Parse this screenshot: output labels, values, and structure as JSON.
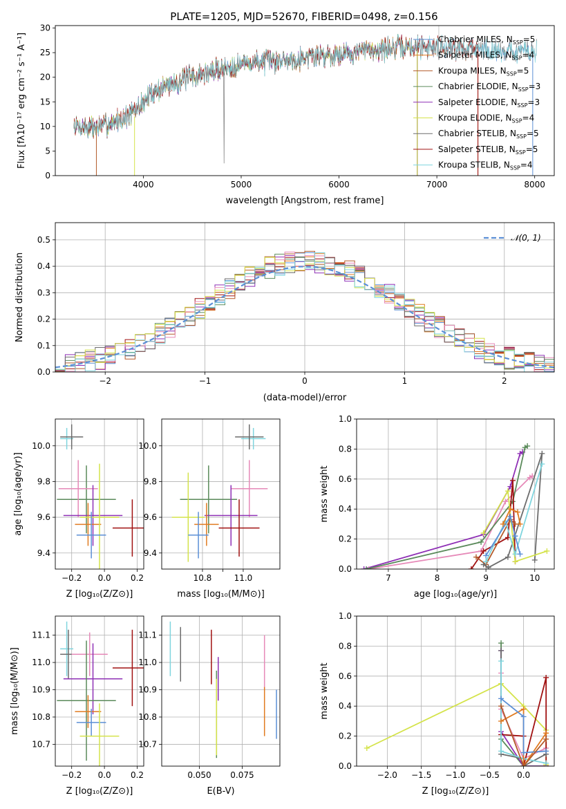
{
  "figure": {
    "title": "PLATE=1205, MJD=52670, FIBERID=0498, z=0.156"
  },
  "colors": {
    "C0": "#5b8fd6",
    "C1": "#e07a1f",
    "C2": "#5a8a5a",
    "C3": "#a01010",
    "C4": "#8e2fb5",
    "C5": "#b35a2a",
    "C6": "#e689b8",
    "C7": "#6c6c6c",
    "C8": "#d4e34a",
    "C9": "#7fd5de"
  },
  "chart_data": [
    {
      "id": "spectrum",
      "type": "line",
      "title": "PLATE=1205, MJD=52670, FIBERID=0498, z=0.156",
      "xlabel": "wavelength [Angstrom, rest frame]",
      "ylabel": "Flux [fλ10⁻¹⁷ erg cm⁻² s⁻¹ A⁻¹]",
      "xlim": [
        3100,
        8200
      ],
      "ylim": [
        0,
        30.5
      ],
      "xticks": [
        4000,
        5000,
        6000,
        7000,
        8000
      ],
      "yticks": [
        0,
        5,
        10,
        15,
        20,
        25,
        30
      ],
      "grid": false,
      "legend": "top-right",
      "x_range": [
        3290,
        8020
      ],
      "continuum": [
        [
          3290,
          10.0
        ],
        [
          3500,
          9.8
        ],
        [
          3700,
          10.8
        ],
        [
          3900,
          12.8
        ],
        [
          4100,
          17.0
        ],
        [
          4300,
          18.8
        ],
        [
          4500,
          20.0
        ],
        [
          4700,
          21.2
        ],
        [
          4900,
          22.3
        ],
        [
          5100,
          23.0
        ],
        [
          5400,
          23.4
        ],
        [
          5700,
          24.2
        ],
        [
          6000,
          24.8
        ],
        [
          6300,
          25.5
        ],
        [
          6600,
          26.0
        ],
        [
          6900,
          26.3
        ],
        [
          7200,
          26.0
        ],
        [
          7500,
          25.6
        ],
        [
          7800,
          25.3
        ],
        [
          8020,
          25.0
        ]
      ],
      "series": [
        {
          "name": "Chabrier MILES, N_SSP=5",
          "color_key": "C0",
          "end": 7980
        },
        {
          "name": "Salpeter MILES, N_SSP=4",
          "color_key": "C1",
          "end": 6800
        },
        {
          "name": "Kroupa MILES, N_SSP=5",
          "color_key": "C5",
          "end": 7420
        },
        {
          "name": "Chabrier ELODIE, N_SSP=3",
          "color_key": "C2",
          "end": 6800
        },
        {
          "name": "Salpeter ELODIE, N_SSP=3",
          "color_key": "C4",
          "end": 6800
        },
        {
          "name": "Kroupa ELODIE, N_SSP=4",
          "color_key": "C8",
          "end": 6800
        },
        {
          "name": "Chabrier STELIB, N_SSP=5",
          "color_key": "C7",
          "end": 8020
        },
        {
          "name": "Salpeter STELIB, N_SSP=5",
          "color_key": "C3",
          "end": 7420
        },
        {
          "name": "Kroupa STELIB, N_SSP=4",
          "color_key": "C9",
          "end": 8020
        }
      ]
    },
    {
      "id": "residuals",
      "type": "histogram",
      "xlabel": "(data-model)/error",
      "ylabel": "Normed distribution",
      "xlim": [
        -2.5,
        2.5
      ],
      "ylim": [
        0,
        0.565
      ],
      "xticks": [
        -2,
        -1,
        0,
        1,
        2
      ],
      "yticks": [
        0.0,
        0.1,
        0.2,
        0.3,
        0.4,
        0.5
      ],
      "grid": true,
      "legend": "top-right",
      "bin_width": 0.1,
      "reference": {
        "name": "𝒩(0, 1)",
        "color_key": "C0",
        "mean": 0,
        "sd": 1
      }
    },
    {
      "id": "z-age",
      "type": "scatter",
      "xlabel": "Z [log₁₀(Z/Z⊙)]",
      "ylabel": "age  [log₁₀(age/yr)]",
      "xlim": [
        -0.3,
        0.24
      ],
      "ylim": [
        9.31,
        10.15
      ],
      "xticks": [
        -0.2,
        0.0,
        0.2
      ],
      "yticks": [
        9.4,
        9.6,
        9.8,
        10.0
      ],
      "grid": true,
      "points": [
        {
          "color_key": "C9",
          "x": -0.23,
          "xerr": 0.04,
          "y": 10.04,
          "yerr": 0.06
        },
        {
          "color_key": "C7",
          "x": -0.2,
          "xerr": 0.07,
          "y": 10.05,
          "yerr": 0.07
        },
        {
          "color_key": "C2",
          "x": -0.11,
          "xerr": 0.18,
          "y": 9.7,
          "yerr": 0.19
        },
        {
          "color_key": "C6",
          "x": -0.16,
          "xerr": 0.12,
          "y": 9.76,
          "yerr": 0.16
        },
        {
          "color_key": "C4",
          "x": -0.07,
          "xerr": 0.18,
          "y": 9.61,
          "yerr": 0.17
        },
        {
          "color_key": "C1",
          "x": -0.1,
          "xerr": 0.08,
          "y": 9.56,
          "yerr": 0.12
        },
        {
          "color_key": "C8",
          "x": -0.03,
          "xerr": 0.12,
          "y": 9.6,
          "yerr": 0.3
        },
        {
          "color_key": "C0",
          "x": -0.08,
          "xerr": 0.09,
          "y": 9.5,
          "yerr": 0.13
        },
        {
          "color_key": "C3",
          "x": 0.17,
          "xerr": 0.12,
          "y": 9.54,
          "yerr": 0.16
        }
      ]
    },
    {
      "id": "mass-age",
      "type": "scatter",
      "xlabel": "mass [log₁₀(M/M⊙)]",
      "ylabel": "",
      "xlim": [
        10.6,
        11.18
      ],
      "ylim": [
        9.31,
        10.15
      ],
      "xticks": [
        10.8,
        10.9,
        11.0
      ],
      "xticklabels": [
        "10.8",
        "",
        "11.0"
      ],
      "yticks": [
        9.4,
        9.6,
        9.8,
        10.0
      ],
      "grid": true,
      "points": [
        {
          "color_key": "C9",
          "x": 11.05,
          "xerr": 0.06,
          "y": 10.04,
          "yerr": 0.06
        },
        {
          "color_key": "C7",
          "x": 11.03,
          "xerr": 0.07,
          "y": 10.05,
          "yerr": 0.07
        },
        {
          "color_key": "C2",
          "x": 10.83,
          "xerr": 0.14,
          "y": 9.7,
          "yerr": 0.19
        },
        {
          "color_key": "C6",
          "x": 11.03,
          "xerr": 0.09,
          "y": 9.76,
          "yerr": 0.16
        },
        {
          "color_key": "C4",
          "x": 10.94,
          "xerr": 0.13,
          "y": 9.61,
          "yerr": 0.17
        },
        {
          "color_key": "C1",
          "x": 10.82,
          "xerr": 0.06,
          "y": 9.56,
          "yerr": 0.12
        },
        {
          "color_key": "C8",
          "x": 10.73,
          "xerr": 0.08,
          "y": 9.6,
          "yerr": 0.25
        },
        {
          "color_key": "C0",
          "x": 10.78,
          "xerr": 0.05,
          "y": 9.5,
          "yerr": 0.13
        },
        {
          "color_key": "C3",
          "x": 10.98,
          "xerr": 0.1,
          "y": 9.54,
          "yerr": 0.16
        }
      ]
    },
    {
      "id": "age-weight",
      "type": "line",
      "xlabel": "age  [log₁₀(age/yr)]",
      "ylabel": "mass weight",
      "xlim": [
        6.35,
        10.4
      ],
      "ylim": [
        0,
        1.0
      ],
      "xticks": [
        7,
        8,
        9,
        10
      ],
      "yticks": [
        0.0,
        0.2,
        0.4,
        0.6,
        0.8,
        1.0
      ],
      "grid": true,
      "series": [
        {
          "color_key": "C4",
          "points": [
            [
              6.5,
              0.0
            ],
            [
              8.95,
              0.23
            ],
            [
              9.5,
              0.55
            ],
            [
              9.7,
              0.77
            ],
            [
              9.75,
              0.78
            ]
          ]
        },
        {
          "color_key": "C6",
          "points": [
            [
              6.6,
              0.0
            ],
            [
              8.9,
              0.12
            ],
            [
              9.4,
              0.45
            ],
            [
              9.9,
              0.61
            ],
            [
              9.95,
              0.62
            ]
          ]
        },
        {
          "color_key": "C2",
          "points": [
            [
              6.55,
              0.0
            ],
            [
              8.9,
              0.18
            ],
            [
              9.55,
              0.45
            ],
            [
              9.8,
              0.81
            ],
            [
              9.85,
              0.82
            ]
          ]
        },
        {
          "color_key": "C3",
          "points": [
            [
              8.7,
              0.0
            ],
            [
              8.95,
              0.12
            ],
            [
              9.45,
              0.21
            ],
            [
              9.55,
              0.59
            ],
            [
              9.6,
              0.05
            ]
          ]
        },
        {
          "color_key": "C5",
          "points": [
            [
              8.8,
              0.08
            ],
            [
              9.0,
              0.03
            ],
            [
              9.5,
              0.33
            ],
            [
              9.6,
              0.3
            ]
          ]
        },
        {
          "color_key": "C7",
          "points": [
            [
              8.95,
              0.03
            ],
            [
              9.05,
              0.01
            ],
            [
              9.45,
              0.08
            ],
            [
              10.15,
              0.77
            ],
            [
              10.0,
              0.06
            ]
          ]
        },
        {
          "color_key": "C8",
          "points": [
            [
              8.95,
              0.24
            ],
            [
              9.45,
              0.52
            ],
            [
              9.6,
              0.05
            ],
            [
              10.25,
              0.12
            ]
          ]
        },
        {
          "color_key": "C9",
          "points": [
            [
              9.0,
              0.05
            ],
            [
              9.4,
              0.32
            ],
            [
              9.6,
              0.1
            ],
            [
              10.15,
              0.7
            ]
          ]
        },
        {
          "color_key": "C0",
          "points": [
            [
              9.0,
              0.09
            ],
            [
              9.5,
              0.35
            ],
            [
              9.6,
              0.22
            ],
            [
              9.7,
              0.1
            ]
          ]
        },
        {
          "color_key": "C1",
          "points": [
            [
              9.35,
              0.3
            ],
            [
              9.5,
              0.4
            ],
            [
              9.65,
              0.38
            ],
            [
              9.7,
              0.3
            ]
          ]
        }
      ]
    },
    {
      "id": "z-mass",
      "type": "scatter",
      "xlabel": "Z [log₁₀(Z/Z⊙)]",
      "ylabel": "mass [log₁₀(M/M⊙)]",
      "xlim": [
        -0.3,
        0.24
      ],
      "ylim": [
        10.62,
        11.17
      ],
      "xticks": [
        -0.2,
        0.0,
        0.2
      ],
      "yticks": [
        10.7,
        10.8,
        10.9,
        11.0,
        11.1
      ],
      "grid": true,
      "points": [
        {
          "color_key": "C9",
          "x": -0.23,
          "xerr": 0.04,
          "y": 11.05,
          "yerr": 0.1
        },
        {
          "color_key": "C7",
          "x": -0.22,
          "xerr": 0.05,
          "y": 11.03,
          "yerr": 0.09
        },
        {
          "color_key": "C6",
          "x": -0.09,
          "xerr": 0.11,
          "y": 11.03,
          "yerr": 0.08
        },
        {
          "color_key": "C3",
          "x": 0.17,
          "xerr": 0.12,
          "y": 10.98,
          "yerr": 0.14
        },
        {
          "color_key": "C4",
          "x": -0.07,
          "xerr": 0.18,
          "y": 10.94,
          "yerr": 0.13
        },
        {
          "color_key": "C2",
          "x": -0.11,
          "xerr": 0.18,
          "y": 10.86,
          "yerr": 0.22
        },
        {
          "color_key": "C1",
          "x": -0.1,
          "xerr": 0.08,
          "y": 10.82,
          "yerr": 0.06
        },
        {
          "color_key": "C0",
          "x": -0.08,
          "xerr": 0.09,
          "y": 10.78,
          "yerr": 0.05
        },
        {
          "color_key": "C8",
          "x": -0.03,
          "xerr": 0.12,
          "y": 10.73,
          "yerr": 0.12
        }
      ]
    },
    {
      "id": "ebv-mass",
      "type": "scatter",
      "xlabel": "E(B-V)",
      "ylabel": "",
      "xlim": [
        0.028,
        0.097
      ],
      "ylim": [
        10.62,
        11.17
      ],
      "xticks": [
        0.05,
        0.075
      ],
      "xticklabels": [
        "0.050",
        "0.075"
      ],
      "yticks": [
        10.7,
        10.8,
        10.9,
        11.0,
        11.1
      ],
      "grid": true,
      "points": [
        {
          "color_key": "C9",
          "x": 0.033,
          "y": 11.05,
          "yerr": 0.1
        },
        {
          "color_key": "C7",
          "x": 0.039,
          "y": 11.03,
          "yerr": 0.1
        },
        {
          "color_key": "C3",
          "x": 0.057,
          "y": 11.02,
          "yerr": 0.1
        },
        {
          "color_key": "C4",
          "x": 0.061,
          "y": 10.94,
          "yerr": 0.08
        },
        {
          "color_key": "C2",
          "x": 0.06,
          "y": 10.81,
          "yerr": 0.16
        },
        {
          "color_key": "C8",
          "x": 0.06,
          "y": 10.8,
          "yerr": 0.14
        },
        {
          "color_key": "C6",
          "x": 0.088,
          "y": 11.0,
          "yerr": 0.1
        },
        {
          "color_key": "C1",
          "x": 0.088,
          "y": 10.82,
          "yerr": 0.09
        },
        {
          "color_key": "C0",
          "x": 0.095,
          "y": 10.81,
          "yerr": 0.09
        }
      ]
    },
    {
      "id": "z-weight",
      "type": "line",
      "xlabel": "Z [log₁₀(Z/Z⊙)]",
      "ylabel": "mass weight",
      "xlim": [
        -2.45,
        0.45
      ],
      "ylim": [
        0,
        1.0
      ],
      "xticks": [
        -2.0,
        -1.5,
        -1.0,
        -0.5,
        0.0
      ],
      "xticklabels": [
        "−2.0",
        "−1.5",
        "−1.0",
        "−0.5",
        "0.0"
      ],
      "yticks": [
        0.0,
        0.2,
        0.4,
        0.6,
        0.8,
        1.0
      ],
      "grid": true,
      "series": [
        {
          "color_key": "C8",
          "points": [
            [
              -2.3,
              0.12
            ],
            [
              -0.33,
              0.55
            ],
            [
              0.0,
              0.4
            ],
            [
              0.33,
              0.24
            ],
            [
              0.33,
              0.01
            ]
          ]
        },
        {
          "color_key": "C2",
          "points": [
            [
              -0.33,
              0.82
            ],
            [
              -0.33,
              0.18
            ],
            [
              0.0,
              0.0
            ],
            [
              0.33,
              0.0
            ]
          ]
        },
        {
          "color_key": "C4",
          "points": [
            [
              -0.33,
              0.77
            ],
            [
              -0.33,
              0.23
            ],
            [
              0.0,
              0.0
            ],
            [
              0.33,
              0.0
            ]
          ]
        },
        {
          "color_key": "C6",
          "points": [
            [
              -0.33,
              0.62
            ],
            [
              -0.33,
              0.38
            ],
            [
              0.0,
              0.05
            ],
            [
              0.33,
              0.12
            ]
          ]
        },
        {
          "color_key": "C3",
          "points": [
            [
              -0.33,
              0.21
            ],
            [
              0.0,
              0.2
            ],
            [
              0.0,
              0.0
            ],
            [
              0.33,
              0.59
            ],
            [
              0.33,
              0.0
            ]
          ]
        },
        {
          "color_key": "C7",
          "points": [
            [
              -0.33,
              0.77
            ],
            [
              -0.33,
              0.08
            ],
            [
              0.0,
              0.05
            ],
            [
              0.0,
              0.0
            ],
            [
              0.33,
              0.08
            ]
          ]
        },
        {
          "color_key": "C9",
          "points": [
            [
              -0.33,
              0.7
            ],
            [
              -0.33,
              0.1
            ],
            [
              0.0,
              0.05
            ],
            [
              0.33,
              0.02
            ]
          ]
        },
        {
          "color_key": "C1",
          "points": [
            [
              -0.33,
              0.3
            ],
            [
              0.0,
              0.38
            ],
            [
              0.0,
              0.0
            ],
            [
              0.33,
              0.22
            ]
          ]
        },
        {
          "color_key": "C0",
          "points": [
            [
              -0.33,
              0.45
            ],
            [
              0.0,
              0.33
            ],
            [
              0.0,
              0.09
            ],
            [
              0.33,
              0.1
            ]
          ]
        },
        {
          "color_key": "C5",
          "points": [
            [
              -0.33,
              0.4
            ],
            [
              0.0,
              0.0
            ],
            [
              0.33,
              0.18
            ]
          ]
        }
      ]
    }
  ]
}
